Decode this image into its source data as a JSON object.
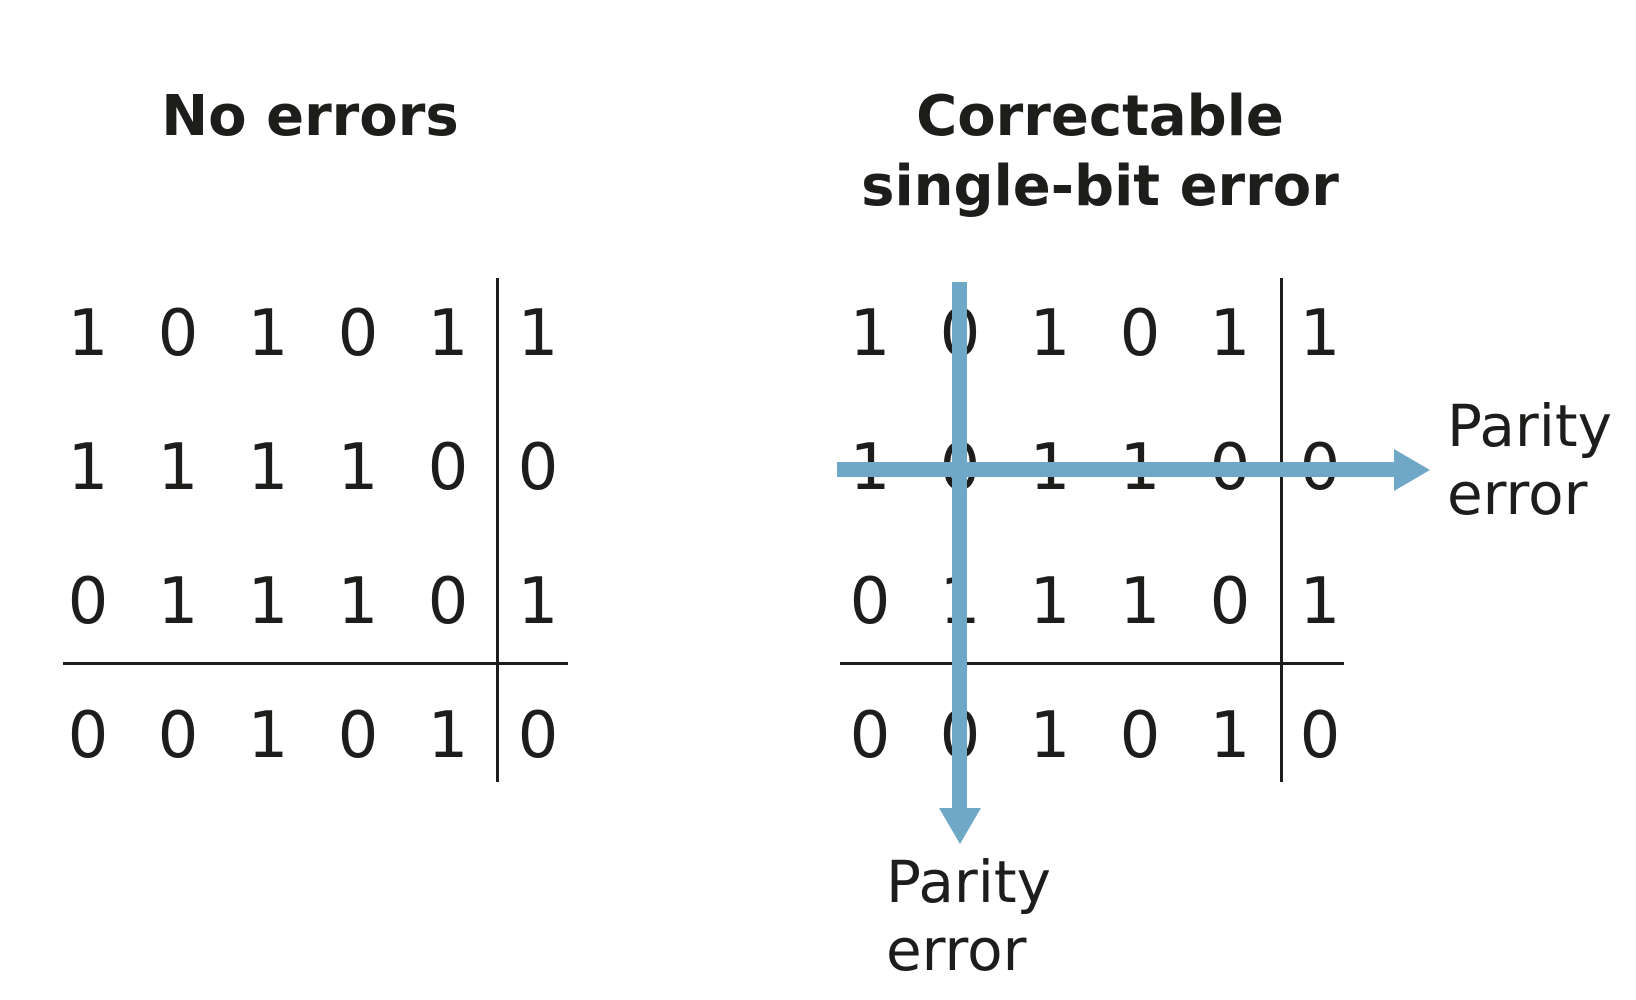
{
  "no_errors": {
    "title": "No errors",
    "matrix": [
      [
        "1",
        "0",
        "1",
        "0",
        "1",
        "1"
      ],
      [
        "1",
        "1",
        "1",
        "1",
        "0",
        "0"
      ],
      [
        "0",
        "1",
        "1",
        "1",
        "0",
        "1"
      ],
      [
        "0",
        "0",
        "1",
        "0",
        "1",
        "0"
      ]
    ]
  },
  "correctable": {
    "title_line1": "Correctable",
    "title_line2": "single-bit error",
    "matrix": [
      [
        "1",
        "0",
        "1",
        "0",
        "1",
        "1"
      ],
      [
        "1",
        "0",
        "1",
        "1",
        "0",
        "0"
      ],
      [
        "0",
        "1",
        "1",
        "1",
        "0",
        "1"
      ],
      [
        "0",
        "0",
        "1",
        "0",
        "1",
        "0"
      ]
    ],
    "row_parity_label_1": "Parity",
    "row_parity_label_2": "error",
    "col_parity_label_1": "Parity",
    "col_parity_label_2": "error"
  },
  "colors": {
    "arrow": "#6fa8c7",
    "text": "#1d1d1b"
  }
}
